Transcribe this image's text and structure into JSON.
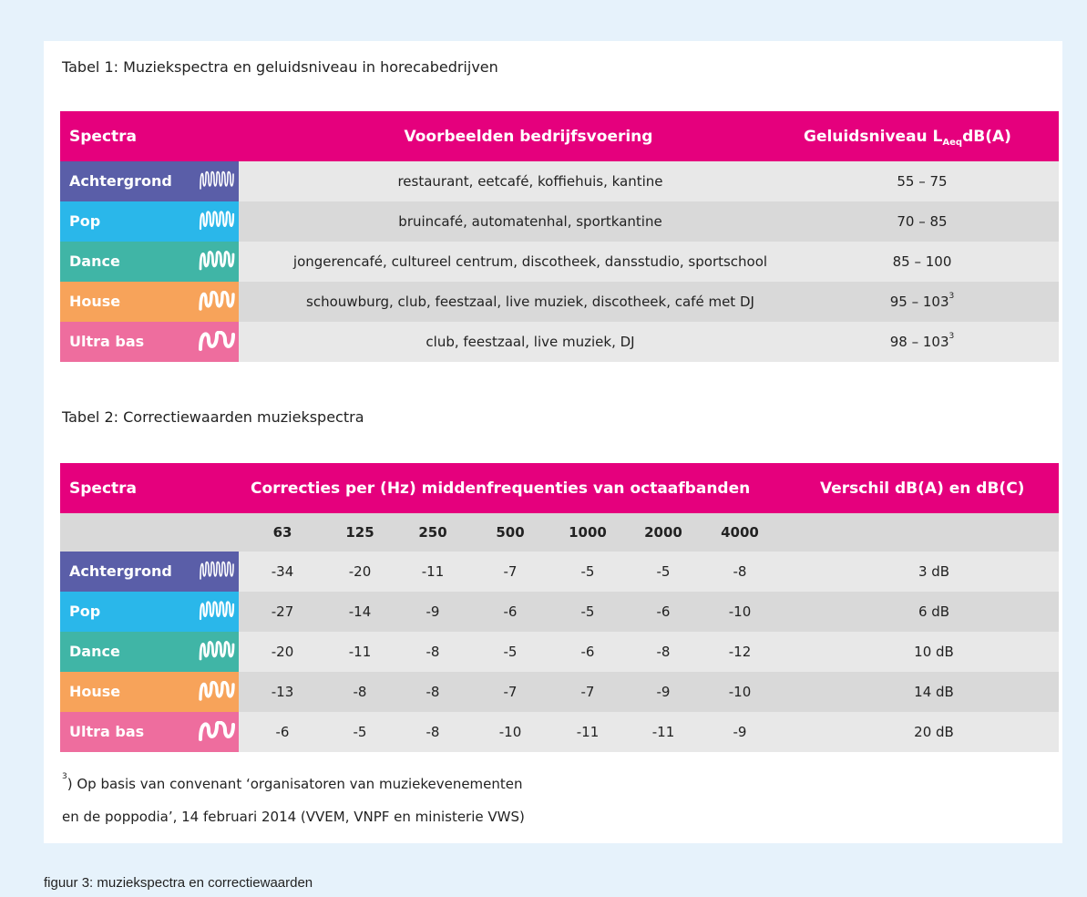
{
  "table1": {
    "title": "Tabel 1: Muziekspectra en geluidsniveau in horecabedrijven",
    "header": {
      "spectra": "Spectra",
      "examples": "Voorbeelden bedrijfsvoering",
      "level": {
        "text": "Geluidsniveau L",
        "sub": "Aeq",
        "unit": "dB(A)"
      }
    },
    "rows": [
      {
        "spectrum": "Achtergrond",
        "examples": "restaurant, eetcafé, koffiehuis, kantine",
        "level": "55 – 75"
      },
      {
        "spectrum": "Pop",
        "examples": "bruincafé, automatenhal, sportkantine",
        "level": "70 – 85"
      },
      {
        "spectrum": "Dance",
        "examples": "jongerencafé, cultureel centrum, discotheek, dansstudio, sportschool",
        "level": "85 – 100"
      },
      {
        "spectrum": "House",
        "examples": "schouwburg, club, feestzaal, live muziek, discotheek, café met DJ",
        "level": "95 – 103",
        "note": "3"
      },
      {
        "spectrum": "Ultra bas",
        "examples": "club, feestzaal, live muziek, DJ",
        "level": "98 – 103",
        "note": "3"
      }
    ]
  },
  "table2": {
    "title": "Tabel 2: Correctiewaarden muziekspectra",
    "header": {
      "spectra": "Spectra",
      "corrections": "Correcties per (Hz) middenfrequenties van octaafbanden",
      "difference": "Verschil dB(A) en dB(C)"
    },
    "frequencies": [
      63,
      125,
      250,
      500,
      1000,
      2000,
      4000
    ],
    "rows": [
      {
        "spectrum": "Achtergrond",
        "values": [
          -34,
          -20,
          -11,
          -7,
          -5,
          -5,
          -8
        ],
        "difference": "3 dB"
      },
      {
        "spectrum": "Pop",
        "values": [
          -27,
          -14,
          -9,
          -6,
          -5,
          -6,
          -10
        ],
        "difference": "6 dB"
      },
      {
        "spectrum": "Dance",
        "values": [
          -20,
          -11,
          -8,
          -5,
          -6,
          -8,
          -12
        ],
        "difference": "10 dB"
      },
      {
        "spectrum": "House",
        "values": [
          -13,
          -8,
          -8,
          -7,
          -7,
          -9,
          -10
        ],
        "difference": "14 dB"
      },
      {
        "spectrum": "Ultra bas",
        "values": [
          -6,
          -5,
          -8,
          -10,
          -11,
          -11,
          -9
        ],
        "difference": "20 dB"
      }
    ]
  },
  "footnote": {
    "note": "3",
    "lines": [
      ") Op basis van convenant ‘organisatoren van muziekevenementen",
      "en de poppodia’, 14 februari 2014 (VVEM, VNPF en ministerie VWS)"
    ]
  },
  "caption": "figuur 3: muziekspectra en correctiewaarden"
}
